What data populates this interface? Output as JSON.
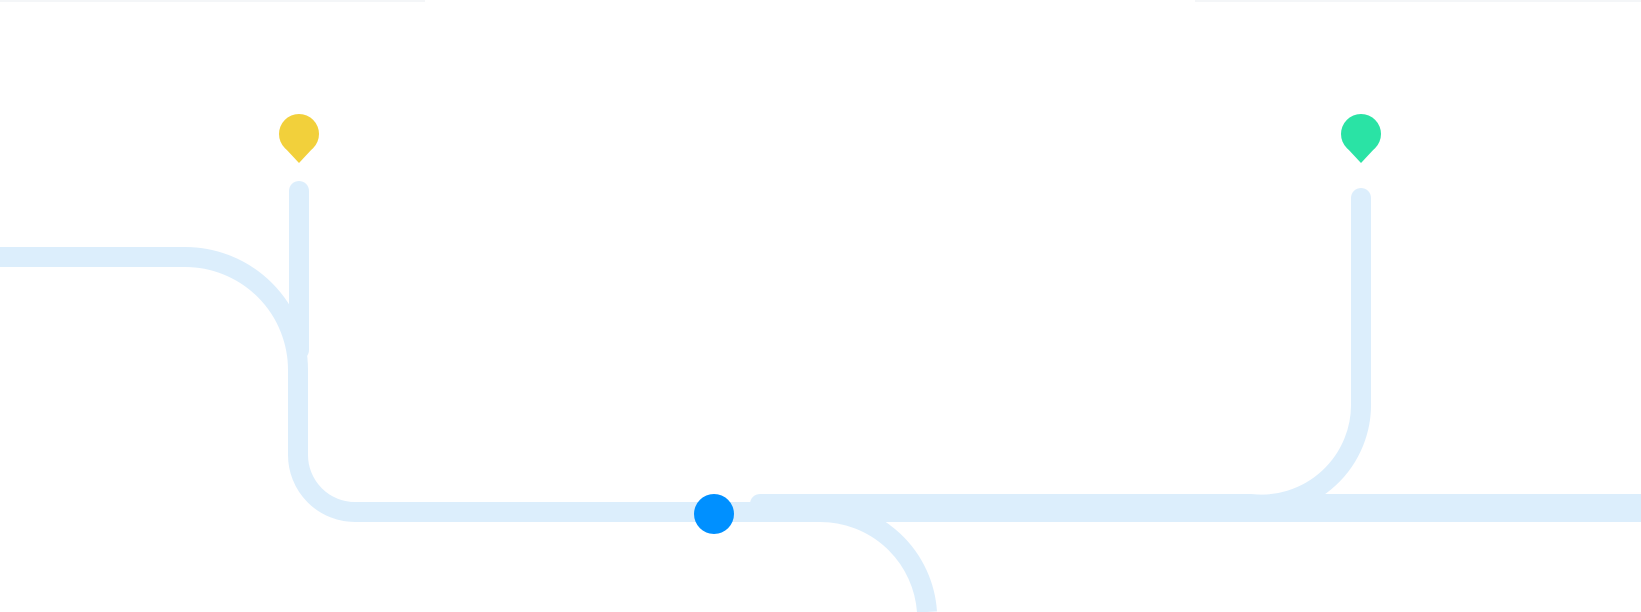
{
  "colors": {
    "background": "#ffffff",
    "track": "#dceefc",
    "pin_yellow": "#f2d03b",
    "pin_green": "#2ae3a5",
    "current_position": "#0090ff",
    "top_edge": "#f4f6f8"
  },
  "icons": {
    "start_pin": "location-pin-yellow",
    "end_pin": "location-pin-green",
    "current_marker": "current-position-dot"
  }
}
